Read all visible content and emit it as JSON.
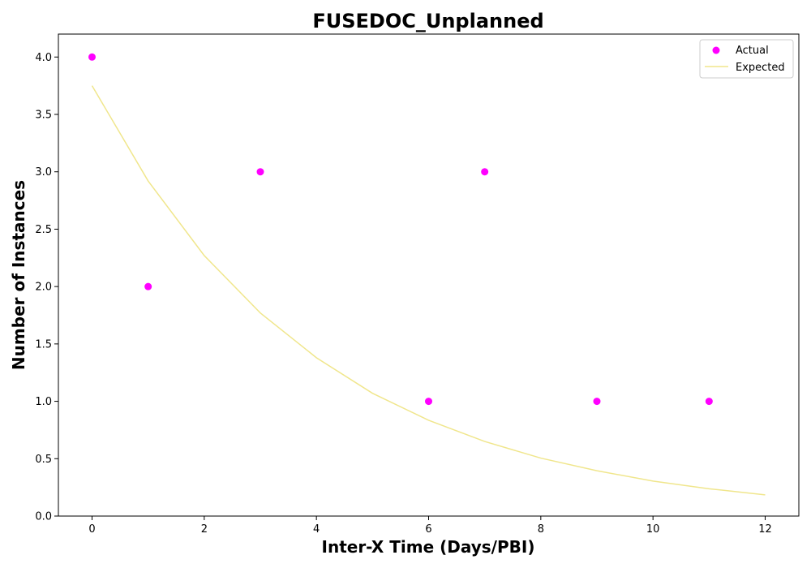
{
  "chart_data": {
    "type": "scatter",
    "title": "FUSEDOC_Unplanned",
    "xlabel": "Inter-X Time (Days/PBI)",
    "ylabel": "Number of Instances",
    "xlim": [
      -0.6,
      12.6
    ],
    "ylim": [
      0.0,
      4.2
    ],
    "xticks": [
      0,
      2,
      4,
      6,
      8,
      10,
      12
    ],
    "yticks": [
      0.0,
      0.5,
      1.0,
      1.5,
      2.0,
      2.5,
      3.0,
      3.5,
      4.0
    ],
    "grid": false,
    "legend_position": "top-right",
    "series": [
      {
        "name": "Actual",
        "kind": "scatter",
        "color": "#ff00ff",
        "x": [
          0,
          1,
          3,
          6,
          7,
          9,
          11
        ],
        "y": [
          4,
          2,
          3,
          1,
          3,
          1,
          1
        ]
      },
      {
        "name": "Expected",
        "kind": "line",
        "color": "#f0e68c",
        "x": [
          0,
          1,
          2,
          3,
          4,
          5,
          6,
          7,
          8,
          9,
          10,
          11,
          12
        ],
        "y": [
          3.75,
          2.92,
          2.27,
          1.77,
          1.38,
          1.07,
          0.835,
          0.65,
          0.505,
          0.395,
          0.305,
          0.238,
          0.185
        ]
      }
    ]
  }
}
